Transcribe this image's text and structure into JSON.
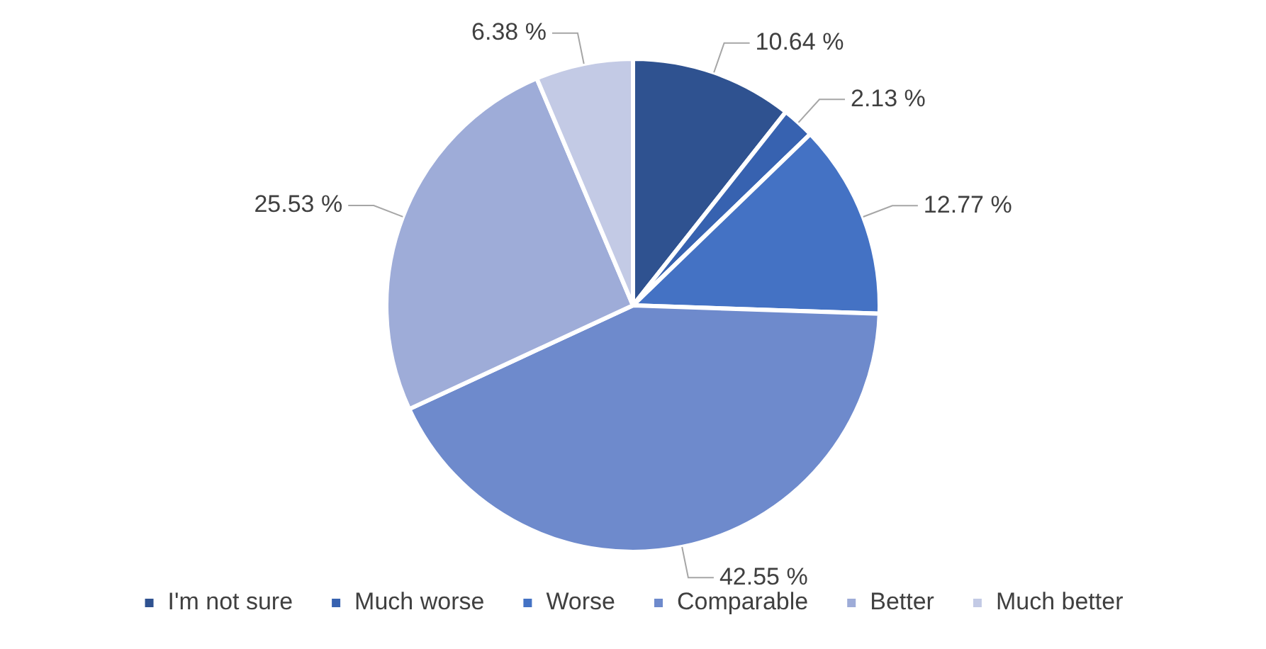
{
  "chart_data": {
    "type": "pie",
    "categories": [
      "I'm not sure",
      "Much worse",
      "Worse",
      "Comparable",
      "Better",
      "Much better"
    ],
    "values": [
      10.64,
      2.13,
      12.77,
      42.55,
      25.53,
      6.38
    ],
    "colors": [
      "#2f5290",
      "#3762b0",
      "#4472c4",
      "#6e8acc",
      "#9eacd8",
      "#c3cae5"
    ],
    "value_labels": [
      "10.64 %",
      "2.13 %",
      "12.77 %",
      "42.55 %",
      "25.53 %",
      "6.38 %"
    ],
    "legend": "bottom"
  }
}
